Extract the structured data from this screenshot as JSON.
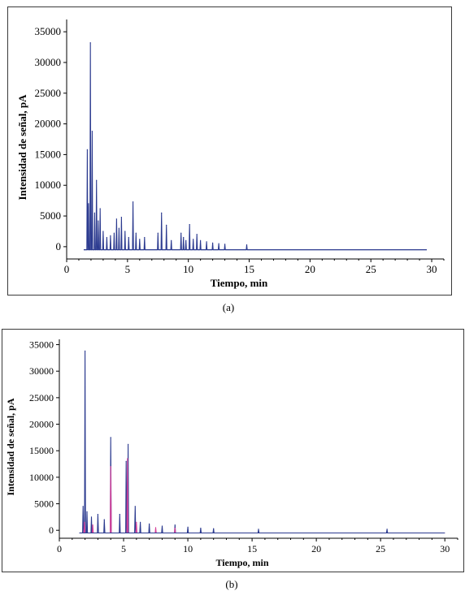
{
  "captions": {
    "a": "(a)",
    "b": "(b)"
  },
  "chart_data": [
    {
      "type": "line",
      "panel": "a",
      "xlabel": "Tiempo, min",
      "ylabel": "Intensidad de señal, pA",
      "xlim": [
        0,
        31
      ],
      "ylim": [
        -2000,
        37000
      ],
      "xticks": [
        0,
        5,
        10,
        15,
        20,
        25,
        30
      ],
      "yticks": [
        0,
        5000,
        10000,
        15000,
        20000,
        25000,
        30000,
        35000
      ],
      "x_end": 29.6,
      "baseline": -500,
      "series": [
        {
          "color": "#2b3a8f",
          "peaks": [
            [
              1.7,
              15800
            ],
            [
              1.8,
              7000
            ],
            [
              1.95,
              33200
            ],
            [
              2.1,
              18800
            ],
            [
              2.3,
              5500
            ],
            [
              2.45,
              10800
            ],
            [
              2.6,
              4200
            ],
            [
              2.75,
              6200
            ],
            [
              3.0,
              2500
            ],
            [
              3.3,
              1500
            ],
            [
              3.6,
              1800
            ],
            [
              3.9,
              2200
            ],
            [
              4.1,
              4500
            ],
            [
              4.3,
              3000
            ],
            [
              4.5,
              4800
            ],
            [
              4.8,
              2500
            ],
            [
              5.1,
              1500
            ],
            [
              5.45,
              7300
            ],
            [
              5.7,
              2200
            ],
            [
              6.0,
              1200
            ],
            [
              6.4,
              1500
            ],
            [
              7.5,
              2200
            ],
            [
              7.8,
              5500
            ],
            [
              8.2,
              3500
            ],
            [
              8.6,
              1000
            ],
            [
              9.4,
              2200
            ],
            [
              9.6,
              1500
            ],
            [
              9.8,
              1000
            ],
            [
              10.1,
              3600
            ],
            [
              10.4,
              1200
            ],
            [
              10.7,
              2000
            ],
            [
              11.0,
              1000
            ],
            [
              11.5,
              800
            ],
            [
              12.0,
              600
            ],
            [
              12.5,
              500
            ],
            [
              13.0,
              400
            ],
            [
              14.8,
              300
            ]
          ]
        }
      ]
    },
    {
      "type": "line",
      "panel": "b",
      "xlabel": "Tiempo, min",
      "ylabel": "Intensidad de señal, pA",
      "xlim": [
        0,
        31
      ],
      "ylim": [
        -1500,
        36000
      ],
      "xticks": [
        0,
        5,
        10,
        15,
        20,
        25,
        30
      ],
      "yticks": [
        0,
        5000,
        10000,
        15000,
        20000,
        25000,
        30000,
        35000
      ],
      "x_end": 30,
      "baseline": -500,
      "series": [
        {
          "color": "#2b3a8f",
          "peaks": [
            [
              1.85,
              4500
            ],
            [
              2.0,
              33800
            ],
            [
              2.15,
              3500
            ],
            [
              2.5,
              2500
            ],
            [
              3.0,
              3000
            ],
            [
              3.5,
              2000
            ],
            [
              4.0,
              17500
            ],
            [
              4.7,
              3000
            ],
            [
              5.2,
              13000
            ],
            [
              5.35,
              16200
            ],
            [
              5.9,
              4500
            ],
            [
              6.3,
              1500
            ],
            [
              7.0,
              1200
            ],
            [
              8.0,
              800
            ],
            [
              9.0,
              1000
            ],
            [
              10.0,
              600
            ],
            [
              11.0,
              400
            ],
            [
              12.0,
              300
            ],
            [
              15.5,
              200
            ],
            [
              25.5,
              200
            ]
          ]
        },
        {
          "color": "#d6409a",
          "peaks": [
            [
              1.95,
              1500
            ],
            [
              2.6,
              1000
            ],
            [
              4.0,
              12000
            ],
            [
              5.3,
              13500
            ],
            [
              6.0,
              1500
            ],
            [
              7.5,
              500
            ],
            [
              9.0,
              400
            ]
          ]
        }
      ]
    }
  ]
}
